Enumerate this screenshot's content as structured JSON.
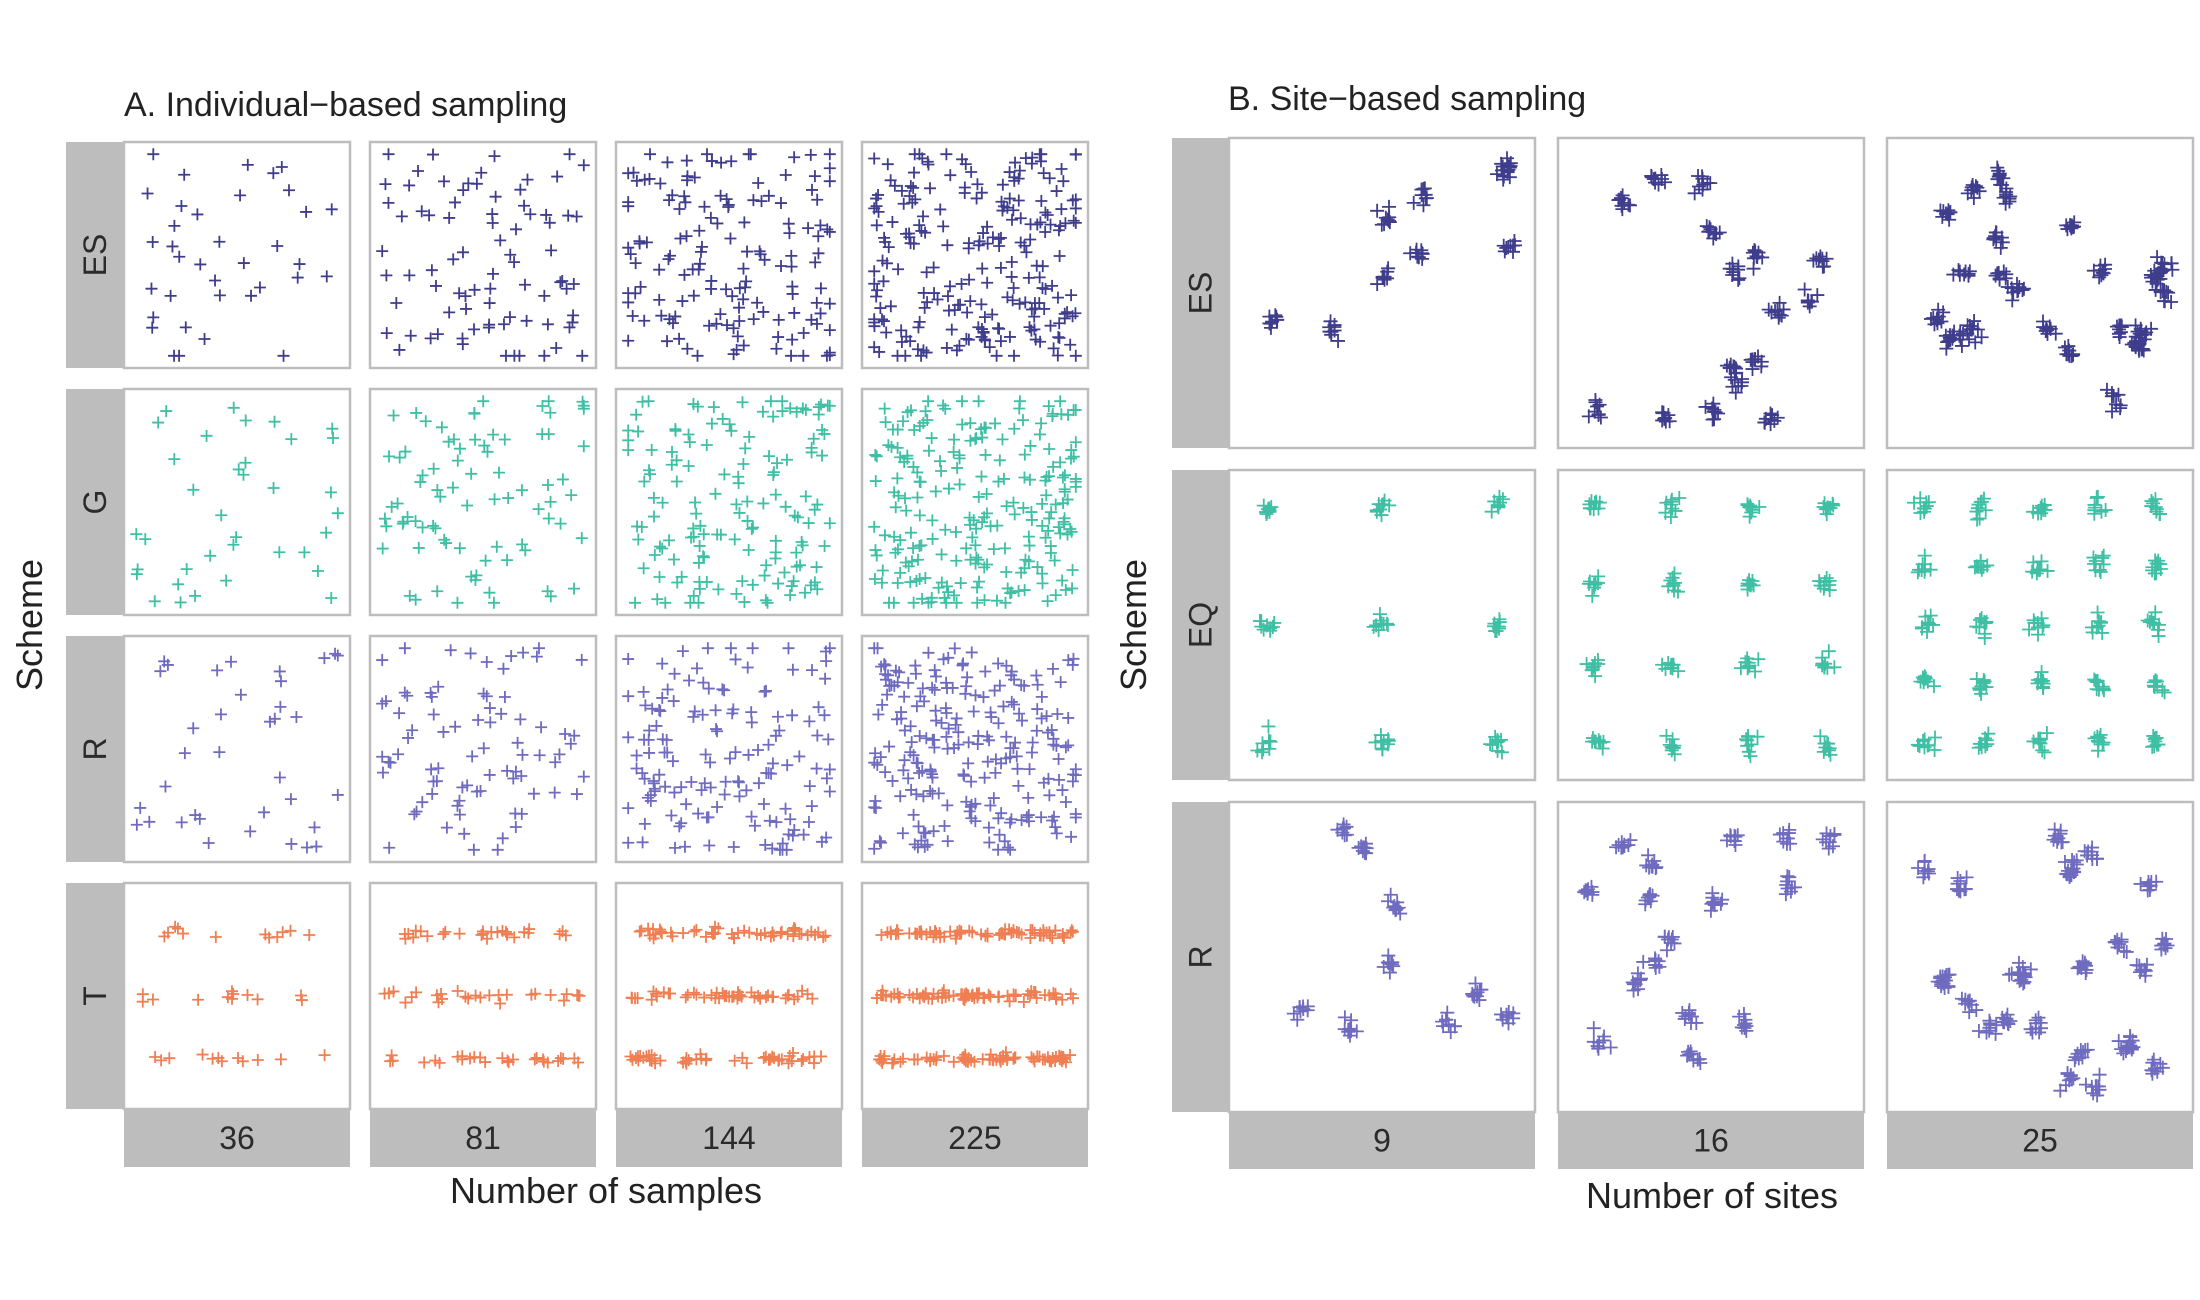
{
  "chart_data": [
    {
      "type": "scatter",
      "title": "A. Individual−based sampling",
      "xlabel": "Number of samples",
      "ylabel": "Scheme",
      "marker": "plus",
      "grid": false,
      "legend": "none",
      "columns": [
        "36",
        "81",
        "144",
        "225"
      ],
      "column_counts": [
        36,
        81,
        144,
        225
      ],
      "rows": [
        {
          "label": "ES",
          "color": "#3f3d8c",
          "pattern": "clustered-random"
        },
        {
          "label": "G",
          "color": "#3fbfa4",
          "pattern": "uniform-random"
        },
        {
          "label": "R",
          "color": "#6f6bbf",
          "pattern": "uniform-random"
        },
        {
          "label": "T",
          "color": "#ef7f52",
          "pattern": "three-horizontal-transects",
          "transect_y": [
            0.2,
            0.5,
            0.8
          ]
        }
      ]
    },
    {
      "type": "scatter",
      "title": "B. Site−based sampling",
      "xlabel": "Number of sites",
      "ylabel": "Scheme",
      "marker": "plus",
      "grid": false,
      "legend": "none",
      "columns": [
        "9",
        "16",
        "25"
      ],
      "column_counts": [
        9,
        16,
        25
      ],
      "points_per_site": 9,
      "rows": [
        {
          "label": "ES",
          "color": "#3f3d8c",
          "pattern": "clustered-random-sites"
        },
        {
          "label": "EQ",
          "color": "#3fbfa4",
          "pattern": "regular-grid-sites"
        },
        {
          "label": "R",
          "color": "#6f6bbf",
          "pattern": "random-sites"
        }
      ]
    }
  ]
}
